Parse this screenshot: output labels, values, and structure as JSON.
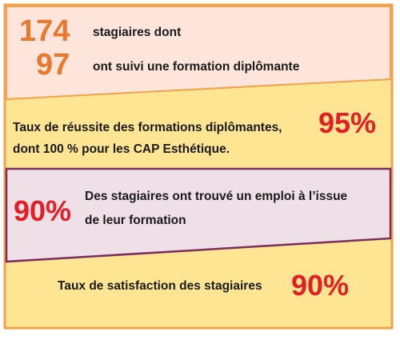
{
  "stats": {
    "trainees_total": "174",
    "trainees_total_label": "stagiaires dont",
    "trainees_diploma": "97",
    "trainees_diploma_label": "ont suivi une formation diplômante"
  },
  "success_rate": {
    "line1": "Taux de réussite des formations diplômantes,",
    "line2": "dont 100 % pour les CAP Esthétique.",
    "value": "95%"
  },
  "employment": {
    "value": "90%",
    "line1": "Des stagiaires ont trouvé un emploi à l’issue",
    "line2": "de leur formation"
  },
  "satisfaction": {
    "label": "Taux de satisfaction des stagiaires",
    "value": "90%"
  },
  "colors": {
    "peach_panel": "#fde5dc",
    "yellow_panel": "#fde593",
    "purple_panel": "#efe0e7",
    "orange_border": "#f2a24a",
    "purple_border": "#7b2d5a"
  }
}
